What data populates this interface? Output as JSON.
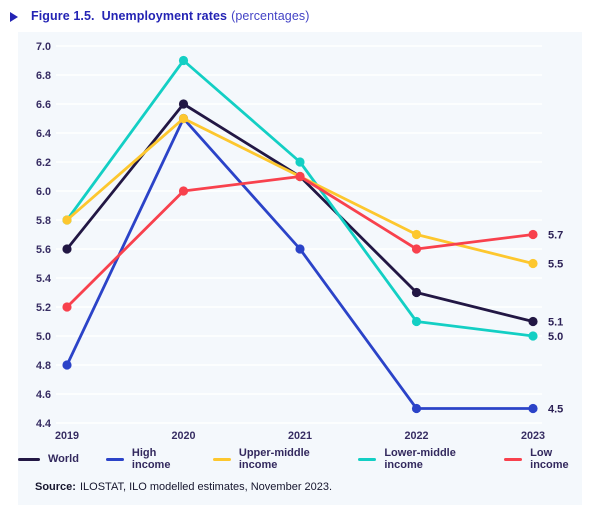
{
  "header": {
    "figure_label": "Figure 1.5.",
    "title": "Unemployment rates",
    "subtitle": "(percentages)"
  },
  "source": {
    "prefix": "Source:",
    "text": "ILOSTAT, ILO modelled estimates, November 2023."
  },
  "colors": {
    "title_accent": "#2424b4",
    "panel_background": "#f4f8fc",
    "gridline": "#ffffff",
    "axis_text": "#372d63",
    "world": "#221744",
    "high_income": "#2b43c8",
    "upper_middle_income": "#fdc72e",
    "lower_middle_income": "#13cfc4",
    "low_income": "#f8414d"
  },
  "chart_data": {
    "type": "line",
    "title": "Figure 1.5. Unemployment rates (percentages)",
    "x": [
      "2019",
      "2020",
      "2021",
      "2022",
      "2023"
    ],
    "series": [
      {
        "name": "World",
        "color": "#221744",
        "values": [
          5.6,
          6.6,
          6.1,
          5.3,
          5.1
        ],
        "end_label": "5.1"
      },
      {
        "name": "High income",
        "color": "#2b43c8",
        "values": [
          4.8,
          6.5,
          5.6,
          4.5,
          4.5
        ],
        "end_label": "4.5"
      },
      {
        "name": "Upper-middle income",
        "color": "#fdc72e",
        "values": [
          5.8,
          6.5,
          6.1,
          5.7,
          5.5
        ],
        "end_label": "5.5"
      },
      {
        "name": "Lower-middle income",
        "color": "#13cfc4",
        "values": [
          5.8,
          6.9,
          6.2,
          5.1,
          5.0
        ],
        "end_label": "5.0"
      },
      {
        "name": "Low income",
        "color": "#f8414d",
        "values": [
          5.2,
          6.0,
          6.1,
          5.6,
          5.7
        ],
        "end_label": "5.7"
      }
    ],
    "ylim": [
      4.4,
      7.0
    ],
    "ytick_step": 0.2,
    "grid": "horizontal-white",
    "legend_position": "bottom",
    "end_labels_shown": true
  }
}
